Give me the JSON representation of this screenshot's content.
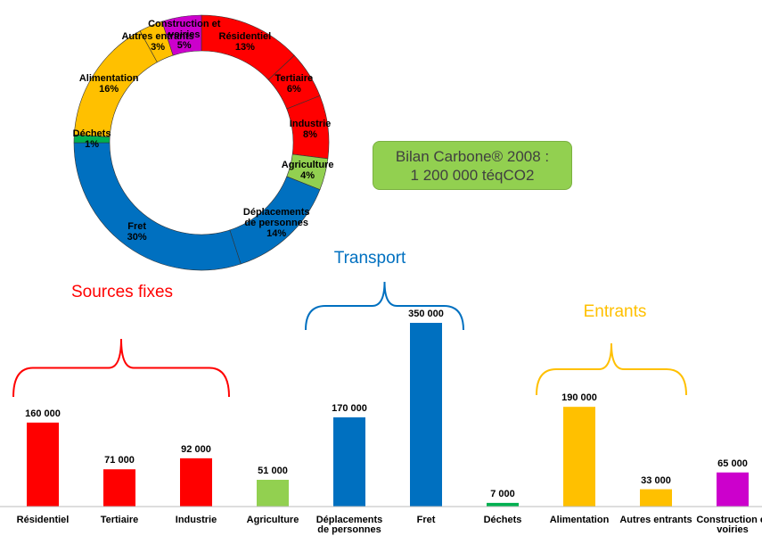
{
  "chart_data": [
    {
      "type": "donut",
      "categories": [
        "Résidentiel",
        "Tertiaire",
        "Industrie",
        "Agriculture",
        "Déplacements de personnes",
        "Fret",
        "Déchets",
        "Alimentation",
        "Autres entrants",
        "Construction et voiries"
      ],
      "values": [
        13,
        6,
        8,
        4,
        14,
        30,
        1,
        16,
        3,
        5
      ],
      "value_labels": [
        "13%",
        "6%",
        "8%",
        "4%",
        "14%",
        "30%",
        "1%",
        "16%",
        "3%",
        "5%"
      ],
      "colors": [
        "#ff0000",
        "#ff0000",
        "#ff0000",
        "#92d050",
        "#0070c0",
        "#0070c0",
        "#00b050",
        "#ffc000",
        "#ffc000",
        "#cc00cc"
      ],
      "annotation": [
        "Bilan Carbone® 2008 :",
        "1 200 000 téqCO2"
      ]
    },
    {
      "type": "bar",
      "categories": [
        "Résidentiel",
        "Tertiaire",
        "Industrie",
        "Agriculture",
        "Déplacements de personnes",
        "Fret",
        "Déchets",
        "Alimentation",
        "Autres entrants",
        "Construction et voiries"
      ],
      "values": [
        160000,
        71000,
        92000,
        51000,
        170000,
        350000,
        7000,
        190000,
        33000,
        65000
      ],
      "value_labels": [
        "160 000",
        "71 000",
        "92 000",
        "51 000",
        "170 000",
        "350 000",
        "7 000",
        "190 000",
        "33 000",
        "65 000"
      ],
      "colors": [
        "#ff0000",
        "#ff0000",
        "#ff0000",
        "#92d050",
        "#0070c0",
        "#0070c0",
        "#00b050",
        "#ffc000",
        "#ffc000",
        "#cc00cc"
      ],
      "ylim": [
        0,
        350000
      ],
      "groups": [
        {
          "label": "Sources fixes",
          "color": "#ff0000"
        },
        {
          "label": "Transport",
          "color": "#0070c0"
        },
        {
          "label": "Entrants",
          "color": "#ffc000"
        }
      ]
    }
  ]
}
